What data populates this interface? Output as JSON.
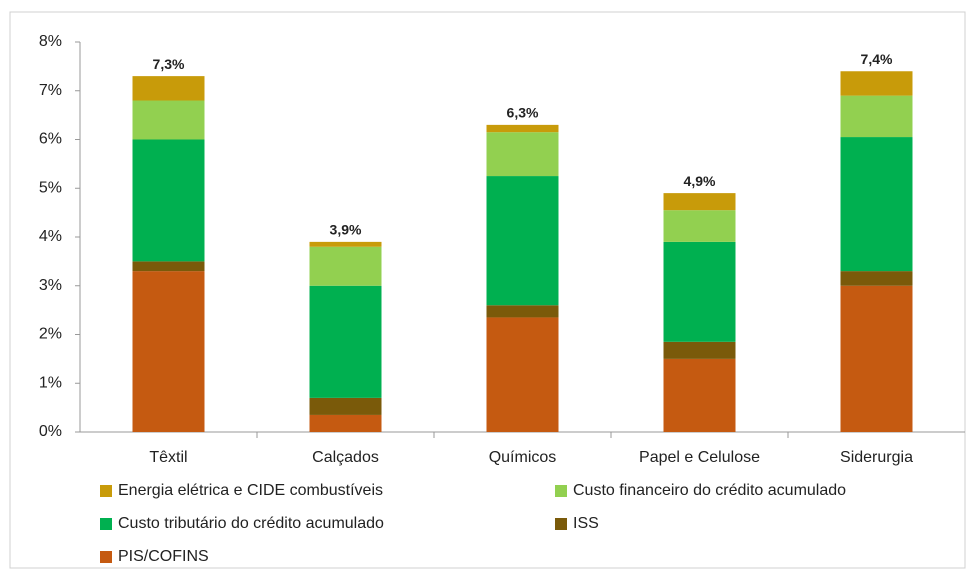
{
  "chart_data": {
    "type": "stacked_bar",
    "categories": [
      "Têxtil",
      "Calçados",
      "Químicos",
      "Papel e Celulose",
      "Siderurgia"
    ],
    "series": [
      {
        "name": "Energia elétrica e CIDE combustíveis",
        "color": "#c89b0a",
        "values": [
          0.5,
          0.1,
          0.15,
          0.35,
          0.5
        ]
      },
      {
        "name": "Custo financeiro do crédito acumulado",
        "color": "#92d050",
        "values": [
          0.8,
          0.8,
          0.9,
          0.65,
          0.85
        ]
      },
      {
        "name": "Custo tributário do crédito acumulado",
        "color": "#00b050",
        "values": [
          2.5,
          2.3,
          2.65,
          2.05,
          2.75
        ]
      },
      {
        "name": "ISS",
        "color": "#7a5a0a",
        "values": [
          0.2,
          0.35,
          0.25,
          0.35,
          0.3
        ]
      },
      {
        "name": "PIS/COFINS",
        "color": "#c55a11",
        "values": [
          3.3,
          0.35,
          2.35,
          1.5,
          3.0
        ]
      }
    ],
    "totals": [
      7.3,
      3.9,
      6.3,
      4.9,
      7.4
    ],
    "total_labels": [
      "7,3%",
      "3,9%",
      "6,3%",
      "4,9%",
      "7,4%"
    ],
    "ylim": [
      0,
      8
    ],
    "yticks": [
      {
        "value": 0,
        "label": "0%"
      },
      {
        "value": 1,
        "label": "1%"
      },
      {
        "value": 2,
        "label": "2%"
      },
      {
        "value": 3,
        "label": "3%"
      },
      {
        "value": 4,
        "label": "4%"
      },
      {
        "value": 5,
        "label": "5%"
      },
      {
        "value": 6,
        "label": "6%"
      },
      {
        "value": 7,
        "label": "7%"
      },
      {
        "value": 8,
        "label": "8%"
      }
    ],
    "grid": false
  }
}
